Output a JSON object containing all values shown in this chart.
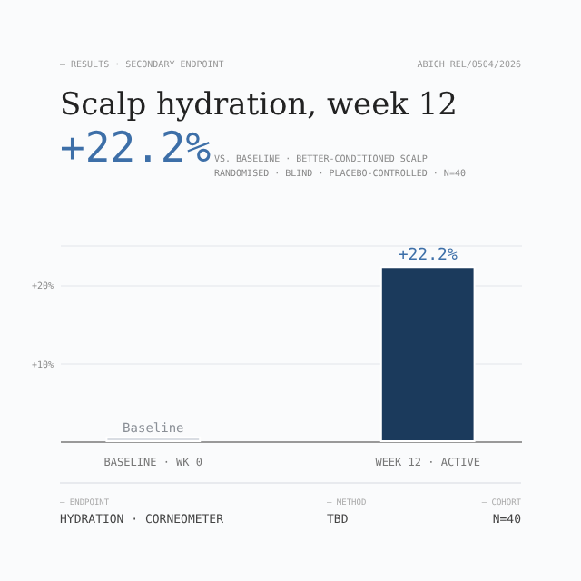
{
  "chart_data": {
    "type": "bar",
    "title": "Scalp hydration, week 12",
    "subtitle": [
      "VS. BASELINE · BETTER-CONDITIONED SCALP",
      "RANDOMISED · BLIND · PLACEBO-CONTROLLED · N=40"
    ],
    "annotations": [
      "— RESULTS · SECONDARY ENDPOINT",
      "ABICH REL/0504/2026",
      "+22.2%",
      "— ENDPOINT",
      "HYDRATION · CORNEOMETER",
      "— METHOD",
      "TBD",
      "— COHORT",
      "N=40"
    ],
    "categories": [
      "BASELINE · WK 0",
      "WEEK 12 · ACTIVE"
    ],
    "values": [
      0.5,
      22.2
    ],
    "colors": [
      "#d9dde3",
      "#1b3a5c"
    ],
    "value_labels": [
      "Baseline",
      "+22.2%"
    ],
    "ylim": [
      0,
      25
    ],
    "yticks": [
      {
        "value": 10,
        "label": "+10%"
      },
      {
        "value": 20,
        "label": "+20%"
      },
      {
        "value": 25,
        "label": null
      }
    ],
    "grid": "y"
  }
}
